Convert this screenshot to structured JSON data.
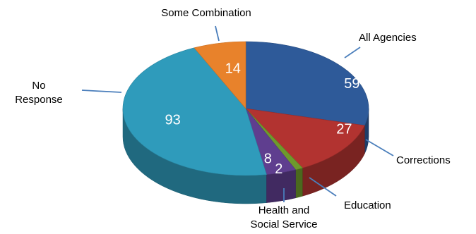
{
  "chart_data": {
    "type": "pie",
    "title": "",
    "categories": [
      "All Agencies",
      "Corrections",
      "Education",
      "Health and Social Service",
      "No Response",
      "Some Combination"
    ],
    "values": [
      59,
      27,
      2,
      8,
      93,
      14
    ],
    "colors": [
      "#2E5A99",
      "#B23330",
      "#6E9A2C",
      "#5F3E8F",
      "#2F9BBB",
      "#E8822B"
    ],
    "value_labels": [
      "59",
      "27",
      "2",
      "8",
      "93",
      "14"
    ],
    "category_labels": [
      [
        "All Agencies"
      ],
      [
        "Corrections"
      ],
      [
        "Education"
      ],
      [
        "Health and",
        "Social Service"
      ],
      [
        "No",
        "Response"
      ],
      [
        "Some Combination"
      ]
    ]
  }
}
